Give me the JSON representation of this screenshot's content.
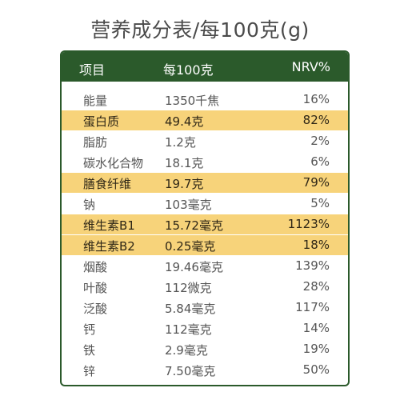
{
  "title": "营养成分表/每100克(g)",
  "header": {
    "item": "项目",
    "amount": "每100克",
    "nrv": "NRV%"
  },
  "colors": {
    "header_bg": "#2b5a2b",
    "highlight": "#f7d37a"
  },
  "rows": [
    {
      "name": "能量",
      "amount": "1350千焦",
      "nrv": "16%",
      "highlight": false
    },
    {
      "name": "蛋白质",
      "amount": "49.4克",
      "nrv": "82%",
      "highlight": true
    },
    {
      "name": "脂肪",
      "amount": "1.2克",
      "nrv": "2%",
      "highlight": false
    },
    {
      "name": "碳水化合物",
      "amount": "18.1克",
      "nrv": "6%",
      "highlight": false
    },
    {
      "name": "膳食纤维",
      "amount": "19.7克",
      "nrv": "79%",
      "highlight": true
    },
    {
      "name": "钠",
      "amount": "103毫克",
      "nrv": "5%",
      "highlight": false
    },
    {
      "name": "维生素B1",
      "amount": "15.72毫克",
      "nrv": "1123%",
      "highlight": true
    },
    {
      "name": "维生素B2",
      "amount": "0.25毫克",
      "nrv": "18%",
      "highlight": true
    },
    {
      "name": "烟酸",
      "amount": "19.46毫克",
      "nrv": "139%",
      "highlight": false
    },
    {
      "name": "叶酸",
      "amount": "112微克",
      "nrv": "28%",
      "highlight": false
    },
    {
      "name": "泛酸",
      "amount": "5.84毫克",
      "nrv": "117%",
      "highlight": false
    },
    {
      "name": "钙",
      "amount": "112毫克",
      "nrv": "14%",
      "highlight": false
    },
    {
      "name": "铁",
      "amount": "2.9毫克",
      "nrv": "19%",
      "highlight": false
    },
    {
      "name": "锌",
      "amount": "7.50毫克",
      "nrv": "50%",
      "highlight": false
    }
  ]
}
